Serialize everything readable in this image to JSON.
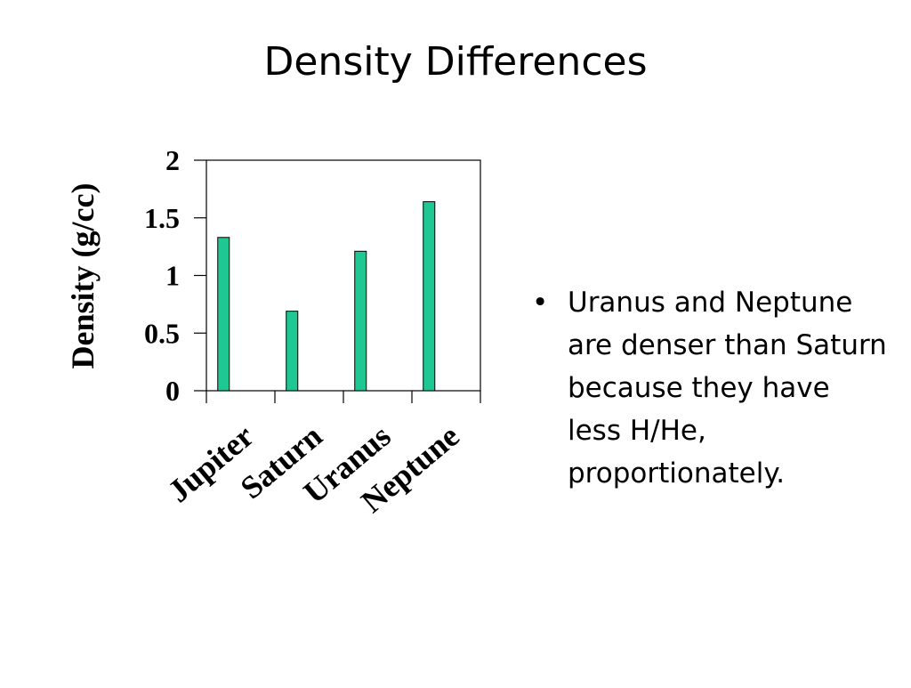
{
  "slide": {
    "title": "Density Differences",
    "bullet_symbol": "•",
    "bullet_text": "Uranus and Neptune are denser than Saturn because they have less H/He, proportionately."
  },
  "chart_data": {
    "type": "bar",
    "categories": [
      "Jupiter",
      "Saturn",
      "Uranus",
      "Neptune"
    ],
    "values": [
      1.33,
      0.69,
      1.21,
      1.64
    ],
    "ylabel": "Density (g/cc)",
    "xlabel": "",
    "ylim": [
      0,
      2
    ],
    "yticks": [
      0,
      0.5,
      1,
      1.5,
      2
    ],
    "ytick_labels": [
      "0",
      "0.5",
      "1",
      "1.5",
      "2"
    ],
    "bar_color": "#1fc893",
    "grid": false,
    "legend": "none"
  }
}
